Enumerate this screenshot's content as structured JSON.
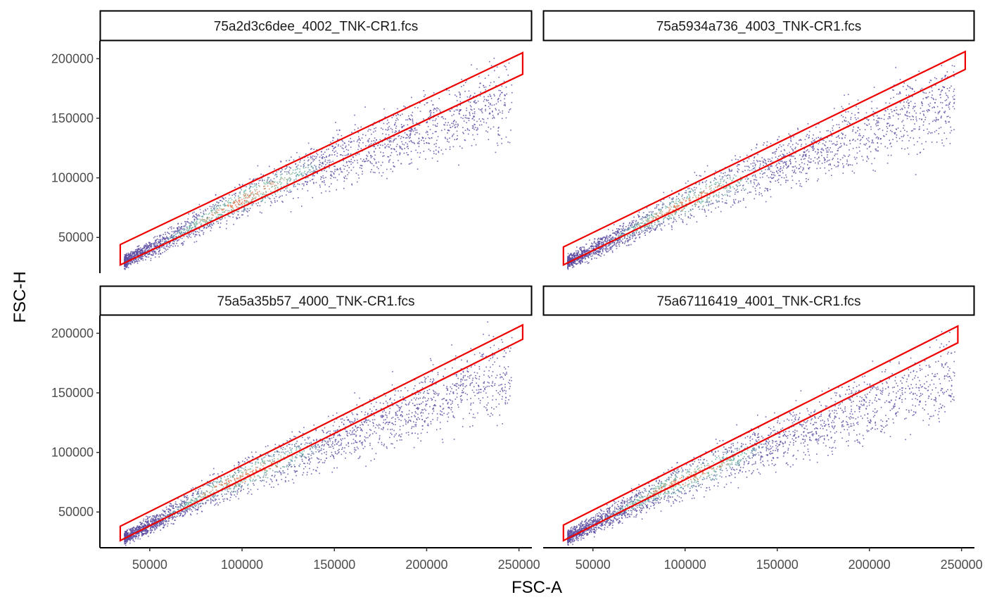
{
  "colors": {
    "gate": "#ee0000",
    "axis": "#000000",
    "strip_border": "#000000",
    "strip_fill": "#ffffff",
    "density_low": "#5e4fa2",
    "density_mid": "#66c2a5",
    "density_high": "#f46d43"
  },
  "chart_data": {
    "type": "scatter",
    "subtype": "density-scatter-facets",
    "xlabel": "FSC-A",
    "ylabel": "FSC-H",
    "xlim": [
      23000,
      257000
    ],
    "ylim": [
      20000,
      215000
    ],
    "xticks": [
      50000,
      100000,
      150000,
      200000,
      250000
    ],
    "yticks": [
      50000,
      100000,
      150000,
      200000
    ],
    "xtick_labels": [
      "50000",
      "100000",
      "150000",
      "200000",
      "250000"
    ],
    "ytick_labels": [
      "50000",
      "100000",
      "150000",
      "200000"
    ],
    "grid": false,
    "facets": [
      {
        "label": "75a2d3c6dee_4002_TNK-CR1.fcs",
        "gate": [
          [
            34000,
            27000
          ],
          [
            34000,
            44000
          ],
          [
            252000,
            205000
          ],
          [
            252000,
            187000
          ]
        ],
        "density_ridge": [
          [
            35000,
            30000
          ],
          [
            60000,
            50000
          ],
          [
            85000,
            72000
          ],
          [
            110000,
            92000
          ],
          [
            135000,
            110000
          ],
          [
            160000,
            125000
          ],
          [
            190000,
            140000
          ],
          [
            220000,
            160000
          ],
          [
            245000,
            172000
          ]
        ]
      },
      {
        "label": "75a5934a736_4003_TNK-CR1.fcs",
        "gate": [
          [
            34000,
            27000
          ],
          [
            34000,
            42000
          ],
          [
            252000,
            206000
          ],
          [
            252000,
            191000
          ]
        ],
        "density_ridge": [
          [
            35000,
            30000
          ],
          [
            60000,
            49000
          ],
          [
            85000,
            70000
          ],
          [
            110000,
            89000
          ],
          [
            135000,
            106000
          ],
          [
            160000,
            121000
          ],
          [
            190000,
            138000
          ],
          [
            220000,
            158000
          ],
          [
            250000,
            170000
          ]
        ]
      },
      {
        "label": "75a5a35b57_4000_TNK-CR1.fcs",
        "gate": [
          [
            34000,
            26000
          ],
          [
            34000,
            38000
          ],
          [
            252000,
            207000
          ],
          [
            252000,
            195000
          ]
        ],
        "density_ridge": [
          [
            35000,
            29000
          ],
          [
            60000,
            49000
          ],
          [
            85000,
            72000
          ],
          [
            110000,
            89000
          ],
          [
            135000,
            106000
          ],
          [
            160000,
            121000
          ],
          [
            190000,
            140000
          ],
          [
            220000,
            160000
          ],
          [
            250000,
            175000
          ]
        ]
      },
      {
        "label": "75a67116419_4001_TNK-CR1.fcs",
        "gate": [
          [
            34000,
            26000
          ],
          [
            34000,
            39000
          ],
          [
            248000,
            206000
          ],
          [
            248000,
            192000
          ]
        ],
        "density_ridge": [
          [
            35000,
            29000
          ],
          [
            60000,
            49000
          ],
          [
            85000,
            70000
          ],
          [
            110000,
            87000
          ],
          [
            135000,
            104000
          ],
          [
            160000,
            120000
          ],
          [
            190000,
            137000
          ],
          [
            220000,
            155000
          ],
          [
            245000,
            170000
          ]
        ]
      }
    ]
  }
}
